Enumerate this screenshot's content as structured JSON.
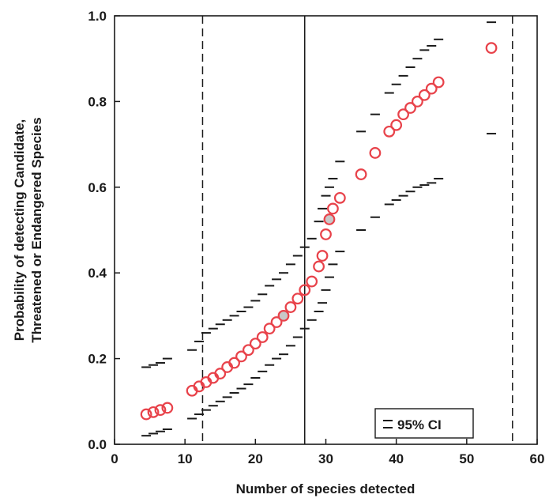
{
  "chart_data": {
    "type": "scatter",
    "xlabel": "Number of species detected",
    "ylabel_lines": [
      "Probability of detecting Candidate,",
      "Threatened or Endangered Species"
    ],
    "xlim": [
      0,
      60
    ],
    "ylim": [
      0,
      1
    ],
    "x_ticks": [
      "0",
      "10",
      "20",
      "30",
      "40",
      "50",
      "60"
    ],
    "y_ticks": [
      "0.0",
      "0.2",
      "0.4",
      "0.6",
      "0.8",
      "1.0"
    ],
    "grid": false,
    "legend": {
      "position": "bottom-right",
      "label": "95% CI"
    },
    "reference_lines": [
      {
        "x": 12.5,
        "style": "dashed"
      },
      {
        "x": 27.0,
        "style": "solid"
      },
      {
        "x": 56.5,
        "style": "dashed"
      }
    ],
    "estimate_color": "#e8424a",
    "highlight_color": "#c8c8c8",
    "points": [
      {
        "x": 4.5,
        "y": 0.07,
        "lo": 0.02,
        "hi": 0.18
      },
      {
        "x": 5.5,
        "y": 0.075,
        "lo": 0.025,
        "hi": 0.185
      },
      {
        "x": 6.5,
        "y": 0.08,
        "lo": 0.03,
        "hi": 0.19
      },
      {
        "x": 7.5,
        "y": 0.085,
        "lo": 0.035,
        "hi": 0.2
      },
      {
        "x": 11,
        "y": 0.125,
        "lo": 0.06,
        "hi": 0.22
      },
      {
        "x": 12,
        "y": 0.135,
        "lo": 0.07,
        "hi": 0.24
      },
      {
        "x": 13,
        "y": 0.145,
        "lo": 0.08,
        "hi": 0.26
      },
      {
        "x": 14,
        "y": 0.155,
        "lo": 0.09,
        "hi": 0.27
      },
      {
        "x": 15,
        "y": 0.165,
        "lo": 0.1,
        "hi": 0.28
      },
      {
        "x": 16,
        "y": 0.18,
        "lo": 0.11,
        "hi": 0.29
      },
      {
        "x": 17,
        "y": 0.19,
        "lo": 0.12,
        "hi": 0.3
      },
      {
        "x": 18,
        "y": 0.205,
        "lo": 0.13,
        "hi": 0.31
      },
      {
        "x": 19,
        "y": 0.22,
        "lo": 0.14,
        "hi": 0.32
      },
      {
        "x": 20,
        "y": 0.235,
        "lo": 0.155,
        "hi": 0.335
      },
      {
        "x": 21,
        "y": 0.25,
        "lo": 0.17,
        "hi": 0.35
      },
      {
        "x": 22,
        "y": 0.27,
        "lo": 0.185,
        "hi": 0.37
      },
      {
        "x": 23,
        "y": 0.285,
        "lo": 0.2,
        "hi": 0.385
      },
      {
        "x": 24,
        "y": 0.3,
        "lo": 0.21,
        "hi": 0.4,
        "highlight": true
      },
      {
        "x": 25,
        "y": 0.32,
        "lo": 0.23,
        "hi": 0.42
      },
      {
        "x": 26,
        "y": 0.34,
        "lo": 0.25,
        "hi": 0.44
      },
      {
        "x": 27,
        "y": 0.36,
        "lo": 0.27,
        "hi": 0.46
      },
      {
        "x": 28,
        "y": 0.38,
        "lo": 0.29,
        "hi": 0.48
      },
      {
        "x": 29,
        "y": 0.415,
        "lo": 0.31,
        "hi": 0.52
      },
      {
        "x": 29.5,
        "y": 0.44,
        "lo": 0.33,
        "hi": 0.55
      },
      {
        "x": 30,
        "y": 0.49,
        "lo": 0.36,
        "hi": 0.58
      },
      {
        "x": 30.5,
        "y": 0.525,
        "lo": 0.39,
        "hi": 0.6,
        "highlight": true
      },
      {
        "x": 31,
        "y": 0.55,
        "lo": 0.42,
        "hi": 0.62
      },
      {
        "x": 32,
        "y": 0.575,
        "lo": 0.45,
        "hi": 0.66
      },
      {
        "x": 35,
        "y": 0.63,
        "lo": 0.5,
        "hi": 0.73
      },
      {
        "x": 37,
        "y": 0.68,
        "lo": 0.53,
        "hi": 0.77
      },
      {
        "x": 39,
        "y": 0.73,
        "lo": 0.56,
        "hi": 0.82
      },
      {
        "x": 40,
        "y": 0.745,
        "lo": 0.57,
        "hi": 0.84
      },
      {
        "x": 41,
        "y": 0.77,
        "lo": 0.58,
        "hi": 0.86
      },
      {
        "x": 42,
        "y": 0.785,
        "lo": 0.59,
        "hi": 0.88
      },
      {
        "x": 43,
        "y": 0.8,
        "lo": 0.6,
        "hi": 0.9
      },
      {
        "x": 44,
        "y": 0.815,
        "lo": 0.605,
        "hi": 0.92
      },
      {
        "x": 45,
        "y": 0.83,
        "lo": 0.61,
        "hi": 0.93
      },
      {
        "x": 46,
        "y": 0.845,
        "lo": 0.62,
        "hi": 0.945
      },
      {
        "x": 53.5,
        "y": 0.925,
        "lo": 0.725,
        "hi": 0.985
      }
    ]
  }
}
